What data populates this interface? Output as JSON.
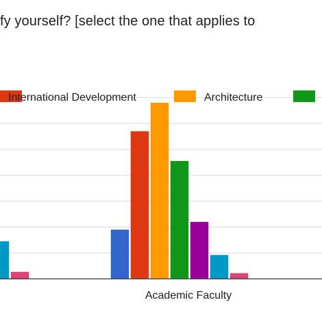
{
  "chart_data": {
    "type": "bar",
    "title": "fy yourself? [select the one that applies to",
    "categories": [
      "",
      "Academic Faculty"
    ],
    "ylim": [
      0,
      7
    ],
    "grid": true,
    "legend": {
      "placement": "top",
      "entries": [
        {
          "name": "International Development",
          "color": "#dc3912"
        },
        {
          "name": "Architecture",
          "color": "#ff9900"
        },
        {
          "name": "",
          "color": "#109618"
        }
      ]
    },
    "series": [
      {
        "name": "",
        "color": "#3366cc",
        "values": [
          null,
          1.9
        ]
      },
      {
        "name": "International Development",
        "color": "#dc3912",
        "values": [
          null,
          5.7
        ]
      },
      {
        "name": "Architecture",
        "color": "#ff9900",
        "values": [
          null,
          6.8
        ]
      },
      {
        "name": "",
        "color": "#109618",
        "values": [
          null,
          4.55
        ]
      },
      {
        "name": "",
        "color": "#990099",
        "values": [
          null,
          2.2
        ]
      },
      {
        "name": "",
        "color": "#0099c6",
        "values": [
          1.45,
          0.92
        ]
      },
      {
        "name": "",
        "color": "#dd4477",
        "values": [
          0.27,
          0.22
        ]
      }
    ]
  }
}
